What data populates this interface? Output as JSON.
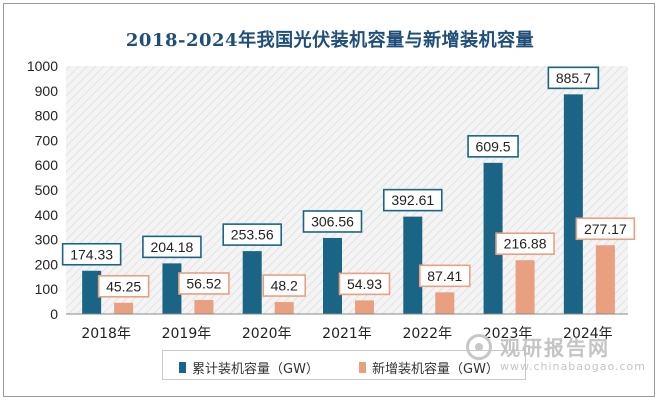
{
  "chart_data": {
    "type": "bar",
    "title": "2018-2024年我国光伏装机容量与新增装机容量",
    "categories": [
      "2018年",
      "2019年",
      "2020年",
      "2021年",
      "2022年",
      "2023年",
      "2024年"
    ],
    "series": [
      {
        "name": "累计装机容量（GW）",
        "color": "#1a6585",
        "values": [
          174.33,
          204.18,
          253.56,
          306.56,
          392.61,
          609.5,
          885.7
        ],
        "labels": [
          "174.33",
          "204.18",
          "253.56",
          "306.56",
          "392.61",
          "609.5",
          "885.7"
        ]
      },
      {
        "name": "新增装机容量（GW）",
        "color": "#e8a081",
        "values": [
          45.25,
          56.52,
          48.2,
          54.93,
          87.41,
          216.88,
          277.17
        ],
        "labels": [
          "45.25",
          "56.52",
          "48.2",
          "54.93",
          "87.41",
          "216.88",
          "277.17"
        ]
      }
    ],
    "ylim": [
      0,
      1000
    ],
    "yticks": [
      0,
      100,
      200,
      300,
      400,
      500,
      600,
      700,
      800,
      900,
      1000
    ],
    "xlabel": "",
    "ylabel": "",
    "legend": "bottom"
  },
  "watermark": {
    "brand": "观研报告网",
    "site": "www.chinabaogao.com"
  }
}
